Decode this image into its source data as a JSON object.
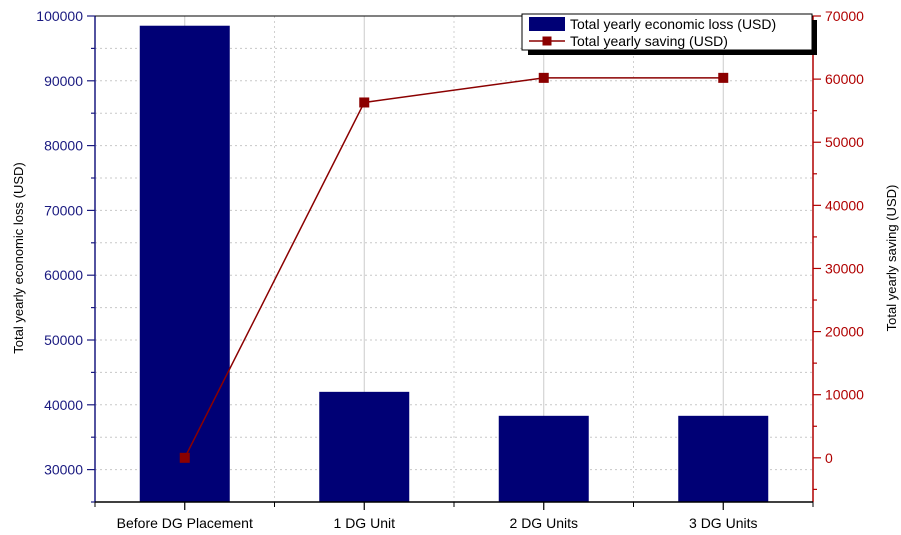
{
  "chart_data": {
    "type": "bar",
    "categories": [
      "Before DG Placement",
      "1 DG Unit",
      "2 DG Units",
      "3 DG Units"
    ],
    "series": [
      {
        "name": "Total yearly economic loss (USD)",
        "type": "bar",
        "axis": "left",
        "color": "#000075",
        "values": [
          98500,
          42000,
          38300,
          38300
        ]
      },
      {
        "name": "Total yearly saving (USD)",
        "type": "line",
        "axis": "right",
        "color": "#8b0000",
        "values": [
          0,
          56300,
          60200,
          60200
        ]
      }
    ],
    "ylabel": "Total yearly economic loss (USD)",
    "y2label": "Total yearly saving (USD)",
    "ylim": [
      25000,
      100000
    ],
    "y2lim": [
      -7000,
      70000
    ],
    "yticks": [
      "30000",
      "40000",
      "50000",
      "60000",
      "70000",
      "80000",
      "90000",
      "100000"
    ],
    "y2ticks": [
      "0",
      "10000",
      "20000",
      "30000",
      "40000",
      "50000",
      "60000",
      "70000"
    ],
    "grid": true,
    "legend_position": "top-right",
    "axis_colors": {
      "left": "#1a1a80",
      "right": "#b00000"
    }
  }
}
